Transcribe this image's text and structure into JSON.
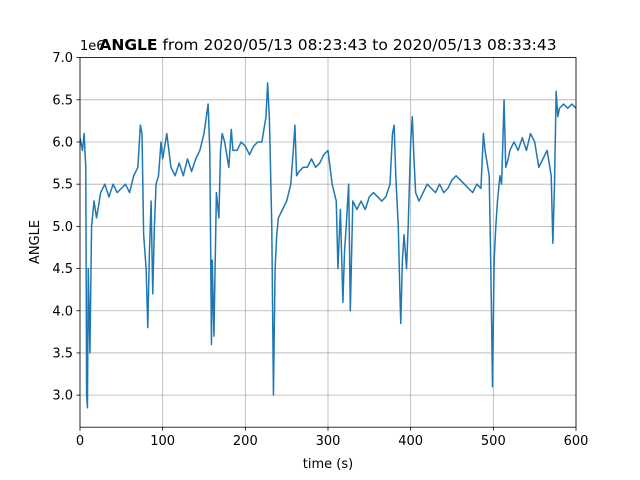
{
  "chart_data": {
    "type": "line",
    "title": {
      "variable": "ANGLE",
      "range": "from 2020/05/13 08:23:43 to 2020/05/13 08:33:43"
    },
    "offset_text": "1e6",
    "x_label": "time (s)",
    "y_label": "ANGLE",
    "xlim": [
      0,
      600
    ],
    "xticks": [
      0,
      100,
      200,
      300,
      400,
      500,
      600
    ],
    "ylim": [
      2.62,
      7.0
    ],
    "yticks": [
      {
        "value": 3,
        "label": "3.0"
      },
      {
        "value": 3.5,
        "label": "3.5"
      },
      {
        "value": 4,
        "label": "4.0"
      },
      {
        "value": 4.5,
        "label": "4.5"
      },
      {
        "value": 5,
        "label": "5.0"
      },
      {
        "value": 5.5,
        "label": "5.5"
      },
      {
        "value": 6,
        "label": "6.0"
      },
      {
        "value": 6.5,
        "label": "6.5"
      },
      {
        "value": 7,
        "label": "7.0"
      }
    ],
    "grid": true,
    "color": "#1f77b4",
    "x": [
      0,
      3,
      5,
      7,
      8,
      9,
      10,
      12,
      14,
      17,
      20,
      25,
      30,
      35,
      40,
      45,
      50,
      55,
      60,
      65,
      70,
      73,
      75,
      77,
      80,
      82,
      84,
      86,
      88,
      90,
      92,
      95,
      98,
      100,
      105,
      110,
      115,
      120,
      125,
      130,
      135,
      140,
      145,
      150,
      155,
      157,
      158,
      159,
      160,
      162,
      165,
      168,
      170,
      172,
      175,
      180,
      183,
      185,
      190,
      195,
      200,
      205,
      210,
      215,
      220,
      225,
      227,
      229,
      230,
      232,
      234,
      236,
      238,
      240,
      245,
      250,
      255,
      258,
      260,
      262,
      265,
      270,
      275,
      280,
      285,
      290,
      295,
      300,
      305,
      310,
      312,
      315,
      318,
      320,
      322,
      325,
      327,
      330,
      335,
      340,
      345,
      350,
      355,
      360,
      365,
      370,
      375,
      378,
      380,
      382,
      385,
      387,
      388,
      390,
      392,
      395,
      397,
      400,
      402,
      404,
      406,
      410,
      415,
      420,
      425,
      430,
      435,
      440,
      445,
      450,
      455,
      460,
      465,
      470,
      475,
      480,
      485,
      488,
      490,
      495,
      497,
      499,
      501,
      503,
      505,
      508,
      510,
      513,
      515,
      518,
      520,
      525,
      530,
      535,
      540,
      545,
      550,
      555,
      560,
      565,
      570,
      572,
      574,
      576,
      578,
      580,
      585,
      590,
      595,
      600
    ],
    "values": [
      6.05,
      5.9,
      6.1,
      5.7,
      3.0,
      2.85,
      4.5,
      3.5,
      5.0,
      5.3,
      5.1,
      5.4,
      5.5,
      5.35,
      5.5,
      5.4,
      5.45,
      5.5,
      5.4,
      5.6,
      5.7,
      6.2,
      6.1,
      4.9,
      4.5,
      3.8,
      4.7,
      5.3,
      4.2,
      5.0,
      5.5,
      5.6,
      6.0,
      5.8,
      6.1,
      5.7,
      5.6,
      5.75,
      5.6,
      5.8,
      5.65,
      5.8,
      5.9,
      6.1,
      6.45,
      5.9,
      4.8,
      3.6,
      4.6,
      3.7,
      5.4,
      5.1,
      5.9,
      6.1,
      6.0,
      5.7,
      6.15,
      5.9,
      5.9,
      6.0,
      5.95,
      5.85,
      5.95,
      6.0,
      6.0,
      6.3,
      6.7,
      6.3,
      5.9,
      5.0,
      3.0,
      4.5,
      4.9,
      5.1,
      5.2,
      5.3,
      5.5,
      5.9,
      6.2,
      5.6,
      5.65,
      5.7,
      5.7,
      5.8,
      5.7,
      5.75,
      5.85,
      5.9,
      5.5,
      5.3,
      4.5,
      5.2,
      4.1,
      4.7,
      5.0,
      5.5,
      4.0,
      5.3,
      5.2,
      5.3,
      5.2,
      5.35,
      5.4,
      5.35,
      5.3,
      5.35,
      5.5,
      6.1,
      6.2,
      5.6,
      5.0,
      4.2,
      3.85,
      4.6,
      4.9,
      4.5,
      5.0,
      6.0,
      6.3,
      5.8,
      5.4,
      5.3,
      5.4,
      5.5,
      5.45,
      5.4,
      5.5,
      5.4,
      5.45,
      5.55,
      5.6,
      5.55,
      5.5,
      5.45,
      5.4,
      5.5,
      5.45,
      6.1,
      5.9,
      5.6,
      4.5,
      3.1,
      4.6,
      5.0,
      5.3,
      5.6,
      5.5,
      6.5,
      5.7,
      5.8,
      5.9,
      6.0,
      5.9,
      6.05,
      5.9,
      6.1,
      6.0,
      5.7,
      5.8,
      5.9,
      5.6,
      4.8,
      5.5,
      6.6,
      6.3,
      6.4,
      6.45,
      6.4,
      6.45,
      6.4
    ]
  }
}
